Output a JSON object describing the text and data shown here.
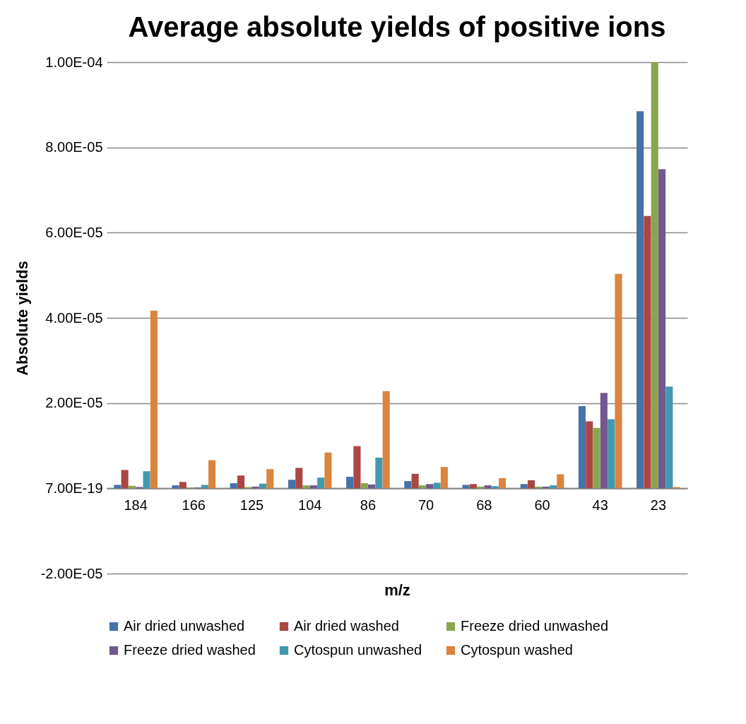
{
  "chart_data": {
    "type": "bar",
    "title": "Average absolute yields of positive ions",
    "xlabel": "m/z",
    "ylabel": "Absolute yields",
    "categories": [
      "184",
      "166",
      "125",
      "104",
      "86",
      "70",
      "68",
      "60",
      "43",
      "23"
    ],
    "series": [
      {
        "name": "Air dried unwashed",
        "color": "#4572a7",
        "values": [
          8e-07,
          7e-07,
          1.2e-06,
          2e-06,
          2.7e-06,
          1.7e-06,
          8e-07,
          1e-06,
          1.93e-05,
          8.85e-05
        ]
      },
      {
        "name": "Air dried washed",
        "color": "#aa4643",
        "values": [
          4.3e-06,
          1.5e-06,
          3e-06,
          4.8e-06,
          9.9e-06,
          3.4e-06,
          1e-06,
          1.9e-06,
          1.57e-05,
          6.39e-05
        ]
      },
      {
        "name": "Freeze dried unwashed",
        "color": "#89a54e",
        "values": [
          6e-07,
          2e-07,
          3e-07,
          7e-07,
          1.2e-06,
          7e-07,
          4e-07,
          4e-07,
          1.42e-05,
          0.0001
        ]
      },
      {
        "name": "Freeze dried washed",
        "color": "#71588f",
        "values": [
          3e-07,
          2e-07,
          4e-07,
          7e-07,
          9e-07,
          1e-06,
          7e-07,
          4e-07,
          2.24e-05,
          7.49e-05
        ]
      },
      {
        "name": "Cytospun unwashed",
        "color": "#4198af",
        "values": [
          4e-06,
          8e-07,
          1.1e-06,
          2.5e-06,
          7.2e-06,
          1.3e-06,
          5e-07,
          7e-07,
          1.62e-05,
          2.39e-05
        ]
      },
      {
        "name": "Cytospun washed",
        "color": "#db843d",
        "values": [
          4.17e-05,
          6.6e-06,
          4.5e-06,
          8.4e-06,
          2.28e-05,
          5e-06,
          2.4e-06,
          3.3e-06,
          5.03e-05,
          3e-07
        ]
      }
    ],
    "ylim": [
      -2e-05,
      0.0001
    ],
    "yticks": [
      {
        "value": -2e-05,
        "label": "-2.00E-05"
      },
      {
        "value": 0,
        "label": "7.00E-19"
      },
      {
        "value": 2e-05,
        "label": "2.00E-05"
      },
      {
        "value": 4e-05,
        "label": "4.00E-05"
      },
      {
        "value": 6e-05,
        "label": "6.00E-05"
      },
      {
        "value": 8e-05,
        "label": "8.00E-05"
      },
      {
        "value": 0.0001,
        "label": "1.00E-04"
      }
    ],
    "grid": "y",
    "legend": "bottom"
  }
}
